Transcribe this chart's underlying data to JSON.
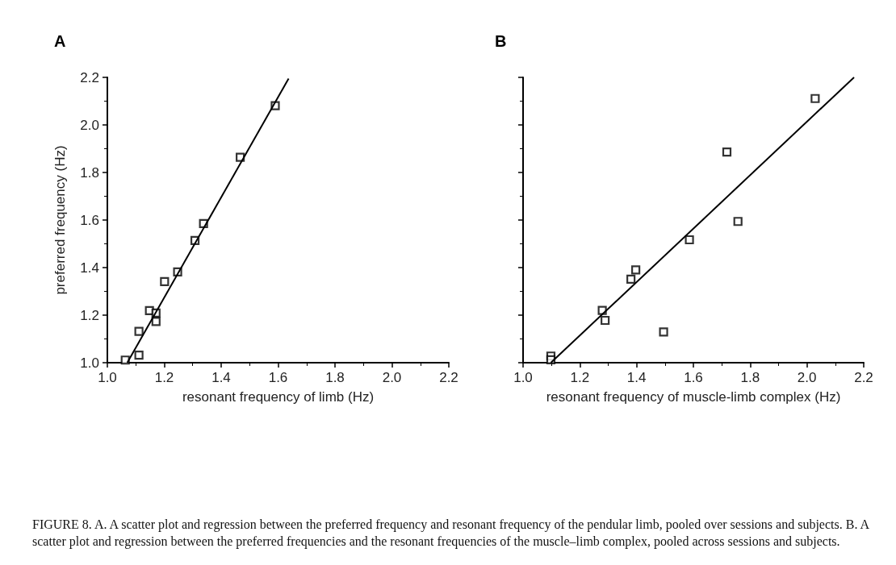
{
  "chart_data": [
    {
      "type": "scatter",
      "title": "A",
      "xlabel": "resonant frequency of limb (Hz)",
      "ylabel": "preferred frequency (Hz)",
      "grid": false,
      "xlim": [
        1.0,
        2.2
      ],
      "ylim": [
        1.0,
        2.2
      ],
      "xticks": [
        {
          "value": 1.0,
          "label": "1.0"
        },
        {
          "value": 1.2,
          "label": "1.2"
        },
        {
          "value": 1.4,
          "label": "1.4"
        },
        {
          "value": 1.6,
          "label": "1.6"
        },
        {
          "value": 1.8,
          "label": "1.8"
        },
        {
          "value": 2.0,
          "label": "2.0"
        },
        {
          "value": 2.2,
          "label": "2.2"
        }
      ],
      "yticks": [
        {
          "value": 1.0,
          "label": "1.0"
        },
        {
          "value": 1.2,
          "label": "1.2"
        },
        {
          "value": 1.4,
          "label": "1.4"
        },
        {
          "value": 1.6,
          "label": "1.6"
        },
        {
          "value": 1.8,
          "label": "1.8"
        },
        {
          "value": 2.0,
          "label": "2.0"
        },
        {
          "value": 2.2,
          "label": "2.2"
        }
      ],
      "annotations": [
        "FIGURE 8. A. A scatter plot and regression between the preferred frequency and resonant frequency of the pendular limb, pooled over sessions and subjects. B. A scatter plot and regression between the preferred frequencies and the resonant frequencies of the muscle–limb complex, pooled across sessions and subjects."
      ],
      "series": [
        {
          "marker": "square",
          "color": "#000000",
          "x": [
            1.063,
            1.111,
            1.111,
            1.148,
            1.171,
            1.171,
            1.201,
            1.247,
            1.308,
            1.338,
            1.467,
            1.59
          ],
          "values": [
            1.011,
            1.032,
            1.132,
            1.219,
            1.209,
            1.173,
            1.341,
            1.382,
            1.514,
            1.585,
            1.864,
            2.081
          ]
        },
        {
          "type": "line",
          "marker": "none",
          "color": "#000000",
          "x": [
            1.07,
            1.637
          ],
          "values": [
            1.0,
            2.195
          ]
        }
      ]
    },
    {
      "type": "scatter",
      "title": "B",
      "xlabel": "resonant frequency of muscle-limb complex (Hz)",
      "grid": false,
      "tick_labels": "x",
      "xlim": [
        1.0,
        2.2
      ],
      "ylim": [
        1.0,
        2.2
      ],
      "xticks": [
        {
          "value": 1.0,
          "label": "1.0"
        },
        {
          "value": 1.2,
          "label": "1.2"
        },
        {
          "value": 1.4,
          "label": "1.4"
        },
        {
          "value": 1.6,
          "label": "1.6"
        },
        {
          "value": 1.8,
          "label": "1.8"
        },
        {
          "value": 2.0,
          "label": "2.0"
        },
        {
          "value": 2.2,
          "label": "2.2"
        }
      ],
      "yticks": [
        {
          "value": 1.0,
          "label": null
        },
        {
          "value": 1.2,
          "label": null
        },
        {
          "value": 1.4,
          "label": null
        },
        {
          "value": 1.6,
          "label": null
        },
        {
          "value": 1.8,
          "label": null
        },
        {
          "value": 2.0,
          "label": null
        },
        {
          "value": 2.2,
          "label": null
        }
      ],
      "series": [
        {
          "marker": "square",
          "color": "#000000",
          "x": [
            1.098,
            1.098,
            1.279,
            1.289,
            1.38,
            1.397,
            1.495,
            1.586,
            1.718,
            1.757,
            2.029
          ],
          "values": [
            1.028,
            1.012,
            1.22,
            1.178,
            1.351,
            1.39,
            1.129,
            1.517,
            1.886,
            1.594,
            2.111
          ]
        },
        {
          "type": "line",
          "marker": "none",
          "color": "#000000",
          "x": [
            1.098,
            2.166
          ],
          "values": [
            1.0,
            2.2
          ]
        }
      ]
    }
  ]
}
